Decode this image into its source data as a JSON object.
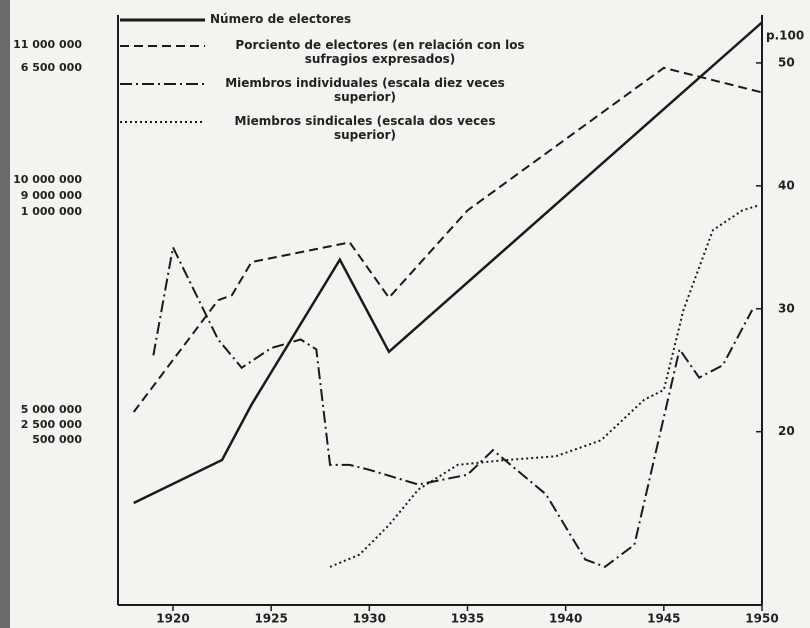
{
  "chart_data": {
    "type": "line",
    "xlim": [
      1917.2,
      1950
    ],
    "xticks": [
      1920,
      1925,
      1930,
      1935,
      1940,
      1945,
      1950
    ],
    "ylim": [
      5.9,
      53.9
    ],
    "yticks": [
      20,
      30,
      40,
      50
    ],
    "y_axis_label": "p.100",
    "left_labels": [
      "11 000 000",
      "6 500 000",
      "10 000 000",
      "9 000 000",
      "1 000 000",
      "5 000 000",
      "2 500 000",
      "500 000"
    ],
    "series": [
      {
        "name": "Número de electores",
        "style": "solid",
        "color": "#1a1a1a",
        "x": [
          1918,
          1922.5,
          1924,
          1928.5,
          1931,
          1950
        ],
        "values": [
          14.2,
          17.7,
          22.2,
          34,
          26.5,
          53.3
        ]
      },
      {
        "name": "Porciento de electores (en relación con los sufragios expresados)",
        "style": "dashed",
        "color": "#1a1a1a",
        "x": [
          1918,
          1922.3,
          1923,
          1924,
          1929,
          1931,
          1935,
          1945,
          1950
        ],
        "values": [
          21.6,
          30.7,
          31.1,
          33.8,
          35.4,
          30.9,
          38,
          49.6,
          47.6
        ]
      },
      {
        "name": "Miembros individuales (escala diez veces superior)",
        "style": "dashdot",
        "color": "#1a1a1a",
        "x": [
          1919,
          1920,
          1922.3,
          1923.5,
          1925,
          1926.5,
          1927.3,
          1928,
          1929,
          1930,
          1932.5,
          1935,
          1936.3,
          1939,
          1941,
          1942,
          1943.5,
          1945.8,
          1946.8,
          1948,
          1949.5
        ],
        "values": [
          26.2,
          35,
          27.5,
          25.2,
          26.8,
          27.5,
          26.7,
          17.3,
          17.3,
          16.9,
          15.7,
          16.5,
          18.5,
          14.9,
          9.6,
          9,
          10.8,
          26.7,
          24.4,
          25.4,
          29.9
        ]
      },
      {
        "name": "Miembros sindicales (escala dos veces superior)",
        "style": "dotted",
        "color": "#1a1a1a",
        "x": [
          1928,
          1929.5,
          1931,
          1932.5,
          1934.5,
          1937,
          1939.5,
          1941.8,
          1944,
          1945,
          1946,
          1947.5,
          1949,
          1949.8
        ],
        "values": [
          9,
          10,
          12.4,
          15.3,
          17.3,
          17.7,
          18,
          19.3,
          22.6,
          23.4,
          29.9,
          36.4,
          38,
          38.4
        ]
      }
    ]
  }
}
